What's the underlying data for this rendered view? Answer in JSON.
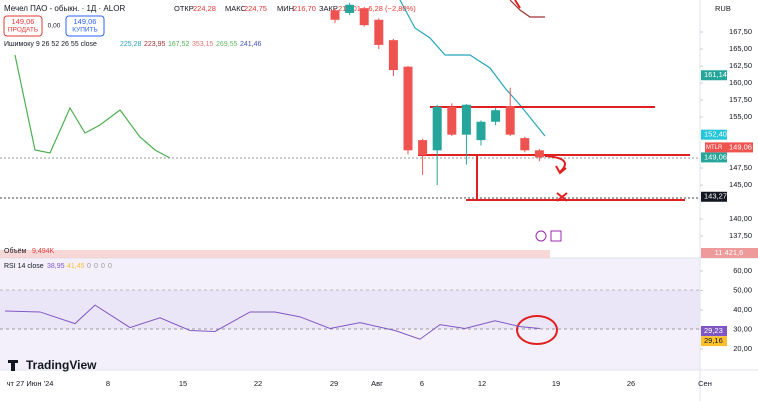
{
  "header": {
    "symbol": "Мечел ПАО - обыкн. · 1Д · ALOR",
    "open_label": "ОТКР",
    "open": "224,28",
    "high_label": "МАКС",
    "high": "224,75",
    "low_label": "МИН",
    "low": "216,70",
    "close_label": "ЗАКР",
    "close": "218,01",
    "change": "−6,28 (−2,80%)",
    "currency": "RUB"
  },
  "trade": {
    "sell_price": "149,06",
    "sell": "ПРОДАТЬ",
    "spread": "0,00",
    "buy_price": "149,06",
    "buy": "КУПИТЬ"
  },
  "ichimoku": {
    "label": "Ишимоку 9 26 52 26 55 close",
    "values": [
      "225,28",
      "223,95",
      "167,52",
      "353,15",
      "269,55",
      "241,46"
    ]
  },
  "volume": {
    "label": "Объём",
    "value": "9,494K",
    "axis_label": "11 421,6"
  },
  "rsi": {
    "label": "RSI 14 close",
    "values": [
      "38,95",
      "41,45",
      "0",
      "0",
      "0",
      "0"
    ],
    "ylim": [
      15,
      66
    ],
    "yticks": [
      {
        "value": 60,
        "label": "60,00"
      },
      {
        "value": 50,
        "label": "50,00"
      },
      {
        "value": 40,
        "label": "40,00"
      },
      {
        "value": 30,
        "label": "30,00"
      },
      {
        "value": 20,
        "label": "20,00"
      }
    ],
    "x": [
      5,
      40,
      75,
      95,
      130,
      160,
      190,
      215,
      250,
      275,
      300,
      330,
      360,
      395,
      420,
      440,
      465,
      495,
      520,
      540
    ],
    "line": [
      39.5,
      39,
      33,
      42.5,
      31,
      36,
      29.5,
      29,
      39,
      39,
      36.5,
      30.5,
      33.5,
      29.5,
      25,
      32.5,
      30.5,
      34.5,
      31.5,
      30.5
    ],
    "price_labels": [
      {
        "value": 29.23,
        "label": "29,23"
      },
      {
        "value": 29.16,
        "label": "29,16"
      }
    ]
  },
  "price": {
    "ylim": [
      135,
      172
    ],
    "yticks": [
      {
        "value": 167.5,
        "label": "167,50"
      },
      {
        "value": 165,
        "label": "165,00"
      },
      {
        "value": 162.5,
        "label": "162,50"
      },
      {
        "value": 160,
        "label": "160,00"
      },
      {
        "value": 157.5,
        "label": "157,50"
      },
      {
        "value": 155,
        "label": "155,00"
      },
      {
        "value": 147.5,
        "label": "147,50"
      },
      {
        "value": 145,
        "label": "145,00"
      },
      {
        "value": 140,
        "label": "140,00"
      },
      {
        "value": 137.5,
        "label": "137,50"
      }
    ],
    "price_labels": [
      {
        "value": 161.14,
        "label": "161,14"
      },
      {
        "value": 152.4,
        "label": "152,40"
      },
      {
        "value": 149.06,
        "label": "149,06"
      },
      {
        "value": 143.27,
        "label": "143,27"
      }
    ],
    "ticker": "MTLR",
    "candles": {
      "open": [
        170.7,
        170.3,
        171,
        169.3,
        166.3,
        162.4,
        151.6,
        150.1,
        156.5,
        152.4,
        151.6,
        154.3,
        156.6,
        151.9,
        150.1
      ],
      "high": [
        171,
        171.8,
        171.2,
        169.5,
        166.5,
        162.5,
        151.8,
        156.8,
        157,
        156.9,
        154.5,
        156.3,
        159.3,
        152.1,
        150.3
      ],
      "low": [
        168.8,
        170,
        168.3,
        165,
        161,
        149.5,
        146.5,
        145,
        152.2,
        148,
        150.8,
        153.8,
        152.2,
        149.8,
        148.5
      ],
      "close": [
        169.3,
        171.5,
        168.5,
        165.6,
        161.9,
        150.1,
        149.4,
        156.5,
        152.4,
        156.8,
        154.3,
        156,
        152.4,
        150.1,
        149.06
      ]
    }
  },
  "time_axis": [
    "чт 27 Июн '24",
    "8",
    "15",
    "22",
    "29",
    "Авг",
    "6",
    "12",
    "19",
    "26",
    "Сен"
  ],
  "branding": "TradingView"
}
